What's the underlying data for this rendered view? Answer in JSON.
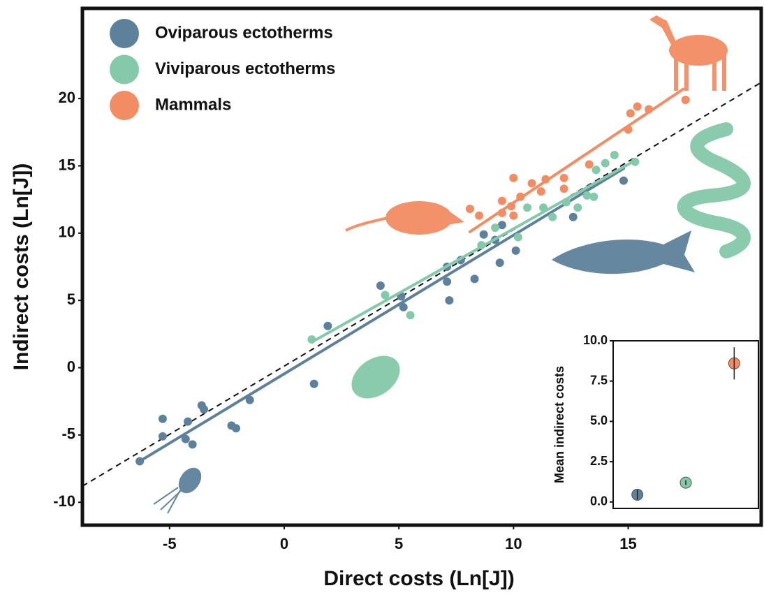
{
  "chart_data": [
    {
      "type": "scatter",
      "xlabel": "Direct costs (Ln[J])",
      "ylabel": "Indirect costs (Ln[J])",
      "xlim": [
        -8.8,
        20.8
      ],
      "ylim": [
        -11.7,
        26.7
      ],
      "xticks": [
        -5,
        0,
        5,
        10,
        15
      ],
      "yticks": [
        -10,
        -5,
        0,
        5,
        10,
        15,
        20
      ],
      "grid": false,
      "legend": "upper left",
      "reference_line": {
        "x": [
          -8.8,
          20.8
        ],
        "y": [
          -8.8,
          21.2
        ],
        "style": "dashed"
      },
      "series": [
        {
          "name": "Oviparous ectotherms",
          "color": "#5e819b",
          "x": [
            -6.3,
            -5.3,
            -5.3,
            -4.2,
            -4.3,
            -4.0,
            -3.6,
            -3.5,
            -2.3,
            -2.1,
            -1.5,
            1.3,
            1.9,
            4.2,
            5.2,
            5.1,
            7.1,
            7.1,
            7.2,
            7.7,
            8.3,
            8.7,
            9.4,
            9.2,
            10.1,
            9.5,
            12.6,
            14.8
          ],
          "values": [
            -6.95,
            -3.8,
            -5.1,
            -4.0,
            -5.3,
            -5.7,
            -2.8,
            -3.1,
            -4.3,
            -4.5,
            -2.4,
            -1.2,
            3.1,
            6.1,
            4.5,
            5.3,
            7.5,
            6.4,
            5.0,
            8.0,
            6.6,
            9.9,
            7.8,
            9.5,
            8.7,
            10.6,
            11.2,
            13.9
          ],
          "fit": {
            "x": [
              -6.3,
              14.8
            ],
            "y": [
              -6.95,
              14.8
            ]
          }
        },
        {
          "name": "Viviparous ectotherms",
          "color": "#84c9aa",
          "x": [
            1.2,
            4.4,
            5.5,
            8.6,
            9.2,
            10.2,
            10.6,
            11.3,
            11.7,
            12.3,
            12.8,
            13.2,
            13.5,
            13.6,
            14.0,
            14.4,
            15.3
          ],
          "values": [
            2.1,
            5.4,
            3.9,
            9.1,
            10.4,
            9.7,
            11.9,
            11.9,
            11.2,
            12.3,
            11.9,
            12.8,
            12.7,
            14.7,
            15.2,
            15.8,
            15.3
          ],
          "fit": {
            "x": [
              1.2,
              15.2
            ],
            "y": [
              1.9,
              15.3
            ]
          }
        },
        {
          "name": "Mammals",
          "color": "#f28c62",
          "x": [
            8.1,
            8.5,
            9.5,
            9.5,
            9.9,
            10.0,
            10.3,
            10.0,
            10.8,
            11.2,
            11.4,
            12.2,
            12.2,
            13.3,
            15.0,
            15.1,
            15.4,
            15.9,
            17.5
          ],
          "values": [
            11.8,
            11.3,
            12.4,
            11.5,
            12.0,
            11.3,
            12.7,
            14.1,
            13.7,
            13.1,
            14.0,
            14.1,
            13.3,
            15.1,
            17.7,
            18.9,
            19.4,
            19.2,
            19.9
          ],
          "fit": {
            "x": [
              8.1,
              17.4
            ],
            "y": [
              10.1,
              20.7
            ]
          }
        }
      ]
    },
    {
      "type": "errorbar",
      "ylabel": "Mean indirect costs",
      "ylim": [
        -0.4,
        10
      ],
      "yticks": [
        {
          "value": 10,
          "label": "10.0"
        },
        7.5,
        {
          "value": 5,
          "label": "5.0"
        },
        2.5,
        {
          "value": 0,
          "label": "0.0"
        }
      ],
      "categories": [
        null,
        null,
        null
      ],
      "values": [
        0.45,
        1.2,
        8.6
      ],
      "errors": [
        0.3,
        0.15,
        1.0
      ],
      "colors": [
        "#5e819b",
        "#84c9aa",
        "#f28c62"
      ]
    }
  ]
}
